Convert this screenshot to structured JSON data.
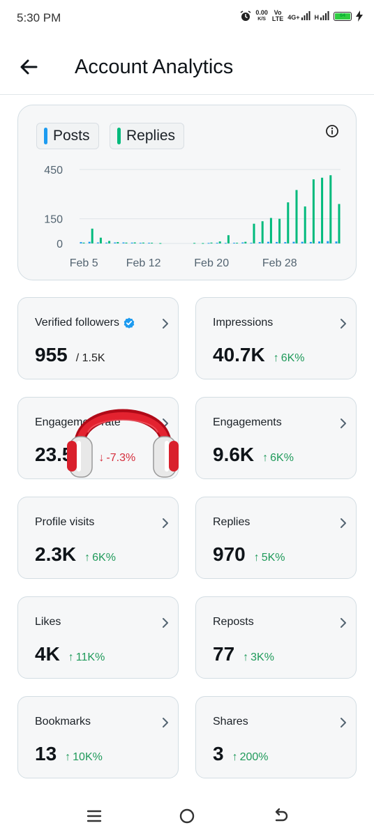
{
  "status_bar": {
    "time": "5:30 PM",
    "net_speed": "0.00",
    "net_unit": "K/S",
    "volte_top": "Vo",
    "volte_bottom": "LTE",
    "network_4g": "4G+",
    "network_h": "H",
    "battery_level": "64"
  },
  "header": {
    "title": "Account Analytics"
  },
  "chart": {
    "legend": [
      {
        "label": "Posts",
        "color": "#1d9bf0"
      },
      {
        "label": "Replies",
        "color": "#00ba7c"
      }
    ]
  },
  "chart_data": {
    "type": "bar",
    "ylim": [
      0,
      450
    ],
    "yticks": [
      0,
      150,
      450
    ],
    "ytick_labels": [
      "0",
      "150",
      "450"
    ],
    "x_tick_labels": [
      "Feb 5",
      "Feb 12",
      "Feb 20",
      "Feb 28"
    ],
    "x_tick_index": [
      1,
      8,
      16,
      24
    ],
    "grid": true,
    "series": [
      {
        "name": "Posts",
        "color": "#1d9bf0",
        "values": [
          8,
          10,
          6,
          5,
          6,
          6,
          5,
          4,
          4,
          0,
          0,
          0,
          0,
          0,
          0,
          3,
          4,
          3,
          4,
          6,
          4,
          8,
          10,
          9,
          8,
          10,
          10,
          9,
          12,
          14,
          12
        ]
      },
      {
        "name": "Replies",
        "color": "#00ba7c",
        "values": [
          5,
          90,
          35,
          15,
          8,
          5,
          6,
          5,
          4,
          2,
          0,
          0,
          0,
          3,
          2,
          5,
          12,
          50,
          4,
          10,
          120,
          135,
          155,
          150,
          250,
          325,
          225,
          390,
          400,
          415,
          240
        ]
      }
    ]
  },
  "cards": [
    {
      "label": "Verified followers",
      "value": "955",
      "sub": "/ 1.5K",
      "trend": "",
      "trend_dir": "",
      "verified": true
    },
    {
      "label": "Impressions",
      "value": "40.7K",
      "sub": "",
      "trend": "6K%",
      "trend_dir": "up"
    },
    {
      "label": "Engagement rate",
      "value": "23.5%",
      "sub": "",
      "trend": "-7.3%",
      "trend_dir": "down"
    },
    {
      "label": "Engagements",
      "value": "9.6K",
      "sub": "",
      "trend": "6K%",
      "trend_dir": "up"
    },
    {
      "label": "Profile visits",
      "value": "2.3K",
      "sub": "",
      "trend": "6K%",
      "trend_dir": "up"
    },
    {
      "label": "Replies",
      "value": "970",
      "sub": "",
      "trend": "5K%",
      "trend_dir": "up"
    },
    {
      "label": "Likes",
      "value": "4K",
      "sub": "",
      "trend": "11K%",
      "trend_dir": "up"
    },
    {
      "label": "Reposts",
      "value": "77",
      "sub": "",
      "trend": "3K%",
      "trend_dir": "up"
    },
    {
      "label": "Bookmarks",
      "value": "13",
      "sub": "",
      "trend": "10K%",
      "trend_dir": "up"
    },
    {
      "label": "Shares",
      "value": "3",
      "sub": "",
      "trend": "200%",
      "trend_dir": "up"
    }
  ],
  "trend_arrows": {
    "up": "↑",
    "down": "↓"
  },
  "colors": {
    "up": "#1f9a5a",
    "down": "#d52e3c",
    "verified": "#1d9bf0",
    "card_bg": "#f6f7f8",
    "card_border": "#d3dde3"
  },
  "icons": {
    "back": "arrow-left-icon",
    "info": "info-circle-icon",
    "chevron": "chevron-right-icon",
    "overlay": "headphones-sticker",
    "nav_menu": "menu-lines-icon",
    "nav_home": "home-circle-icon",
    "nav_back": "back-arrow-icon"
  }
}
